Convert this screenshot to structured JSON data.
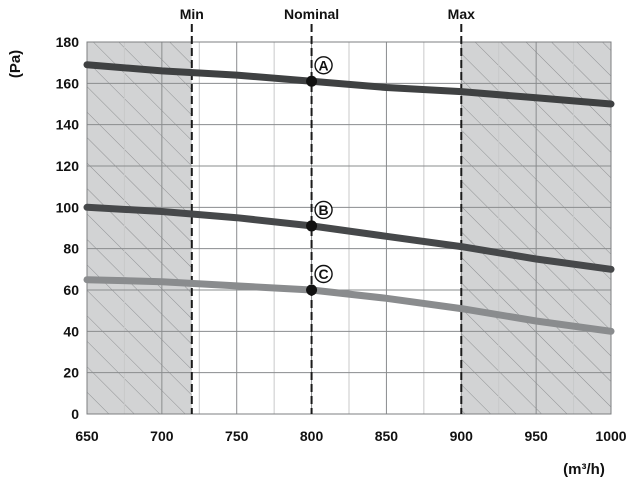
{
  "chart_data": {
    "type": "line",
    "x_unit_label": "m³/h",
    "y_unit_label": "Pa",
    "xlim": [
      650,
      1000
    ],
    "ylim": [
      0,
      180
    ],
    "xticks": [
      650,
      700,
      750,
      800,
      850,
      900,
      950,
      1000
    ],
    "yticks": [
      0,
      20,
      40,
      60,
      80,
      100,
      120,
      140,
      160,
      180
    ],
    "xminor": [
      675,
      725,
      775,
      825,
      875,
      925,
      975
    ],
    "grid": true,
    "shaded_ranges": [
      [
        650,
        720
      ],
      [
        900,
        1000
      ]
    ],
    "reference_lines": [
      {
        "label": "Min",
        "x": 720
      },
      {
        "label": "Nominal",
        "x": 800
      },
      {
        "label": "Max",
        "x": 900
      }
    ],
    "series": [
      {
        "x": [
          650,
          700,
          750,
          800,
          850,
          900,
          950,
          1000
        ],
        "y": [
          169,
          166,
          164,
          161,
          158,
          156,
          153,
          150
        ],
        "color": "#3f4142"
      },
      {
        "x": [
          650,
          700,
          750,
          800,
          850,
          900,
          950,
          1000
        ],
        "y": [
          100,
          98,
          95,
          91,
          86,
          81,
          75,
          70
        ],
        "color": "#46484a"
      },
      {
        "x": [
          650,
          700,
          750,
          800,
          850,
          900,
          950,
          1000
        ],
        "y": [
          65,
          64,
          62,
          60,
          56,
          51,
          45,
          40
        ],
        "color": "#8a8c8e"
      }
    ],
    "points": [
      {
        "label": "A",
        "x": 800,
        "y": 161
      },
      {
        "label": "B",
        "x": 800,
        "y": 91
      },
      {
        "label": "C",
        "x": 800,
        "y": 60
      }
    ]
  }
}
